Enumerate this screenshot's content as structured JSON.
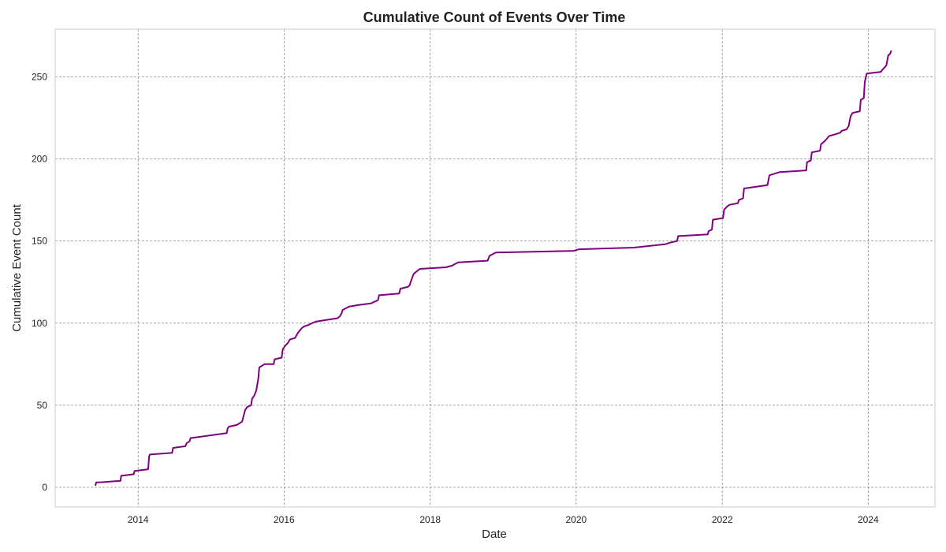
{
  "chart_data": {
    "type": "line",
    "title": "Cumulative Count of Events Over Time",
    "xlabel": "Date",
    "ylabel": "Cumulative Event Count",
    "xlim": [
      "2012-11-12",
      "2024-11-30"
    ],
    "ylim": [
      -12,
      279
    ],
    "x_ticks": [
      {
        "label": "2014",
        "value": "2014-01-01"
      },
      {
        "label": "2016",
        "value": "2016-01-01"
      },
      {
        "label": "2018",
        "value": "2018-01-01"
      },
      {
        "label": "2020",
        "value": "2020-01-01"
      },
      {
        "label": "2022",
        "value": "2022-01-01"
      },
      {
        "label": "2024",
        "value": "2024-01-01"
      }
    ],
    "y_ticks": [
      0,
      50,
      100,
      150,
      200,
      250
    ],
    "grid": true,
    "line_color": "#800080",
    "series": [
      {
        "x": [
          "2013-06-01",
          "2013-06-05",
          "2013-06-15",
          "2013-10-05",
          "2013-10-08",
          "2013-12-10",
          "2013-12-14",
          "2014-02-20",
          "2014-02-25",
          "2014-03-01",
          "2014-06-20",
          "2014-06-25",
          "2014-08-25",
          "2014-09-01",
          "2014-09-15",
          "2014-09-20",
          "2015-03-20",
          "2015-03-25",
          "2015-04-01",
          "2015-05-10",
          "2015-06-05",
          "2015-06-20",
          "2015-07-01",
          "2015-07-20",
          "2015-07-25",
          "2015-08-05",
          "2015-08-15",
          "2015-08-25",
          "2015-08-30",
          "2015-09-25",
          "2015-11-10",
          "2015-11-15",
          "2015-12-20",
          "2015-12-25",
          "2016-01-05",
          "2016-01-20",
          "2016-01-30",
          "2016-02-25",
          "2016-03-10",
          "2016-03-30",
          "2016-04-10",
          "2016-05-05",
          "2016-05-20",
          "2016-06-10",
          "2016-09-25",
          "2016-10-05",
          "2016-10-15",
          "2016-10-20",
          "2016-11-20",
          "2017-01-05",
          "2017-03-10",
          "2017-04-15",
          "2017-04-20",
          "2017-07-30",
          "2017-08-05",
          "2017-09-10",
          "2017-09-20",
          "2017-09-25",
          "2017-10-10",
          "2017-11-10",
          "2018-03-20",
          "2018-04-20",
          "2018-05-20",
          "2018-10-15",
          "2018-10-25",
          "2018-11-25",
          "2019-12-20",
          "2020-01-15",
          "2020-10-15",
          "2021-03-20",
          "2021-04-15",
          "2021-05-20",
          "2021-05-25",
          "2021-10-20",
          "2021-10-25",
          "2021-11-10",
          "2021-11-15",
          "2022-01-05",
          "2022-01-10",
          "2022-01-25",
          "2022-02-05",
          "2022-03-20",
          "2022-03-25",
          "2022-04-15",
          "2022-04-20",
          "2022-08-15",
          "2022-08-25",
          "2022-10-15",
          "2023-02-25",
          "2023-03-01",
          "2023-03-20",
          "2023-03-25",
          "2023-05-05",
          "2023-05-10",
          "2023-05-30",
          "2023-06-20",
          "2023-07-20",
          "2023-08-15",
          "2023-08-20",
          "2023-09-15",
          "2023-09-25",
          "2023-10-05",
          "2023-10-15",
          "2023-11-20",
          "2023-11-25",
          "2023-12-10",
          "2023-12-15",
          "2023-12-25",
          "2024-03-05",
          "2024-03-10",
          "2024-03-25",
          "2024-04-01",
          "2024-04-10",
          "2024-04-20",
          "2024-04-25"
        ],
        "values": [
          1,
          3,
          3,
          4,
          7,
          8,
          10,
          11,
          19,
          20,
          21,
          24,
          25,
          27,
          28,
          30,
          33,
          36,
          37,
          38,
          40,
          47,
          49,
          50,
          54,
          56,
          59,
          66,
          73,
          75,
          75,
          78,
          79,
          84,
          86,
          88,
          90,
          91,
          94,
          97,
          98,
          99,
          100,
          101,
          103,
          104,
          106,
          108,
          110,
          111,
          112,
          114,
          117,
          118,
          121,
          122,
          123,
          125,
          130,
          133,
          134,
          135,
          137,
          138,
          141,
          143,
          144,
          145,
          146,
          148,
          149,
          150,
          153,
          154,
          156,
          157,
          163,
          164,
          169,
          171,
          172,
          173,
          175,
          176,
          182,
          184,
          190,
          192,
          193,
          198,
          199,
          204,
          205,
          209,
          211,
          214,
          215,
          216,
          217,
          218,
          220,
          226,
          228,
          229,
          236,
          237,
          247,
          252,
          253,
          254,
          256,
          257,
          263,
          264,
          266
        ]
      }
    ]
  }
}
